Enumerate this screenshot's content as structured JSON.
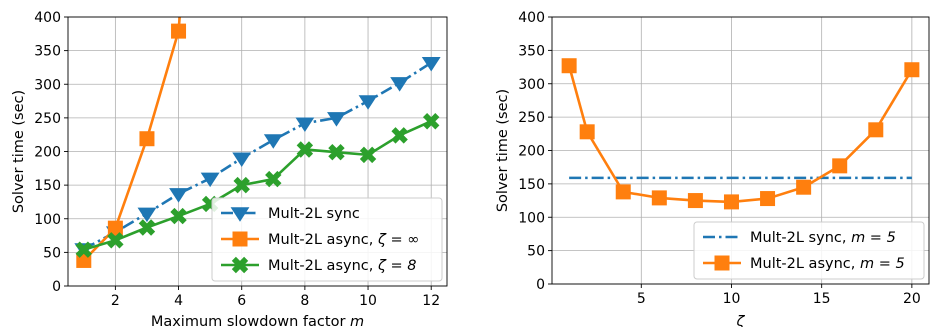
{
  "chart_data": [
    {
      "type": "line",
      "xlabel": "Maximum slowdown factor m",
      "xlabel_plain": "Maximum slowdown factor ",
      "xlabel_var": "m",
      "ylabel": "Solver time (sec)",
      "xlim": [
        0.5,
        12.5
      ],
      "ylim": [
        0,
        400
      ],
      "xticks": [
        2,
        4,
        6,
        8,
        10,
        12
      ],
      "yticks": [
        0,
        50,
        100,
        150,
        200,
        250,
        300,
        350,
        400
      ],
      "grid": true,
      "legend_position": "lower-right",
      "series": [
        {
          "name": "Mult-2L sync",
          "label_plain": "Mult-2L sync",
          "label_math": "",
          "color": "#1f77b4",
          "marker": "triangle-down",
          "linestyle": "dashdot",
          "x": [
            1,
            2,
            3,
            4,
            5,
            6,
            7,
            8,
            9,
            10,
            11,
            12
          ],
          "y": [
            55,
            80,
            108,
            137,
            160,
            190,
            217,
            242,
            250,
            275,
            302,
            332
          ]
        },
        {
          "name": "Mult-2L async, ζ = ∞",
          "label_plain": "Mult-2L async, ",
          "label_math": "ζ = ∞",
          "color": "#ff7f0e",
          "marker": "square",
          "linestyle": "solid",
          "x": [
            1,
            2,
            3,
            4,
            4.07
          ],
          "y": [
            38,
            86,
            219,
            379,
            420
          ]
        },
        {
          "name": "Mult-2L async, ζ = 8",
          "label_plain": "Mult-2L async, ",
          "label_math": "ζ = 8",
          "color": "#2ca02c",
          "marker": "x-filled",
          "linestyle": "solid",
          "x": [
            1,
            2,
            3,
            4,
            5,
            6,
            7,
            8,
            9,
            10,
            11,
            12
          ],
          "y": [
            54,
            68,
            87,
            104,
            122,
            150,
            159,
            203,
            199,
            195,
            224,
            245
          ]
        }
      ]
    },
    {
      "type": "line",
      "xlabel": "ζ",
      "xlabel_plain": "",
      "xlabel_var": "ζ",
      "ylabel": "Solver time (sec)",
      "xlim": [
        0.05,
        20.95
      ],
      "ylim": [
        0,
        400
      ],
      "xticks": [
        5,
        10,
        15,
        20
      ],
      "yticks": [
        0,
        50,
        100,
        150,
        200,
        250,
        300,
        350,
        400
      ],
      "grid": true,
      "legend_position": "lower-right",
      "series": [
        {
          "name": "Mult-2L sync, m = 5",
          "label_plain": "Mult-2L sync, ",
          "label_math": "m = 5",
          "color": "#1f77b4",
          "marker": "none",
          "linestyle": "dashdot",
          "x": [
            1,
            20
          ],
          "y": [
            159,
            159
          ]
        },
        {
          "name": "Mult-2L async, m = 5",
          "label_plain": "Mult-2L async, ",
          "label_math": "m = 5",
          "color": "#ff7f0e",
          "marker": "square",
          "linestyle": "solid",
          "x": [
            1,
            2,
            4,
            6,
            8,
            10,
            12,
            14,
            16,
            18,
            20
          ],
          "y": [
            327,
            228,
            138,
            129,
            125,
            123,
            128,
            145,
            177,
            231,
            321
          ]
        }
      ]
    }
  ]
}
